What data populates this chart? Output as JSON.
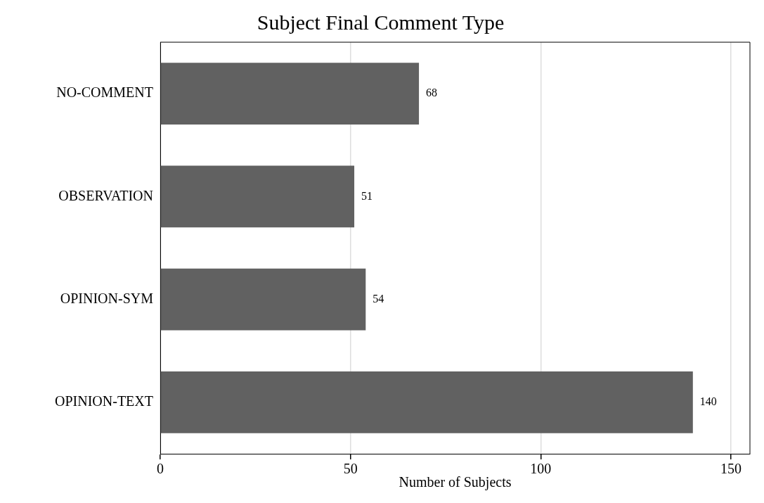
{
  "chart_data": {
    "type": "bar",
    "orientation": "horizontal",
    "title": "Subject Final Comment Type",
    "xlabel": "Number of Subjects",
    "categories": [
      "NO-COMMENT",
      "OBSERVATION",
      "OPINION-SYM",
      "OPINION-TEXT"
    ],
    "values": [
      68,
      51,
      54,
      140
    ],
    "color": "#616161",
    "xlim": [
      0,
      155
    ],
    "xticks": [
      0,
      50,
      100,
      150
    ],
    "grid": "x",
    "data_labels": true,
    "legend": false
  }
}
